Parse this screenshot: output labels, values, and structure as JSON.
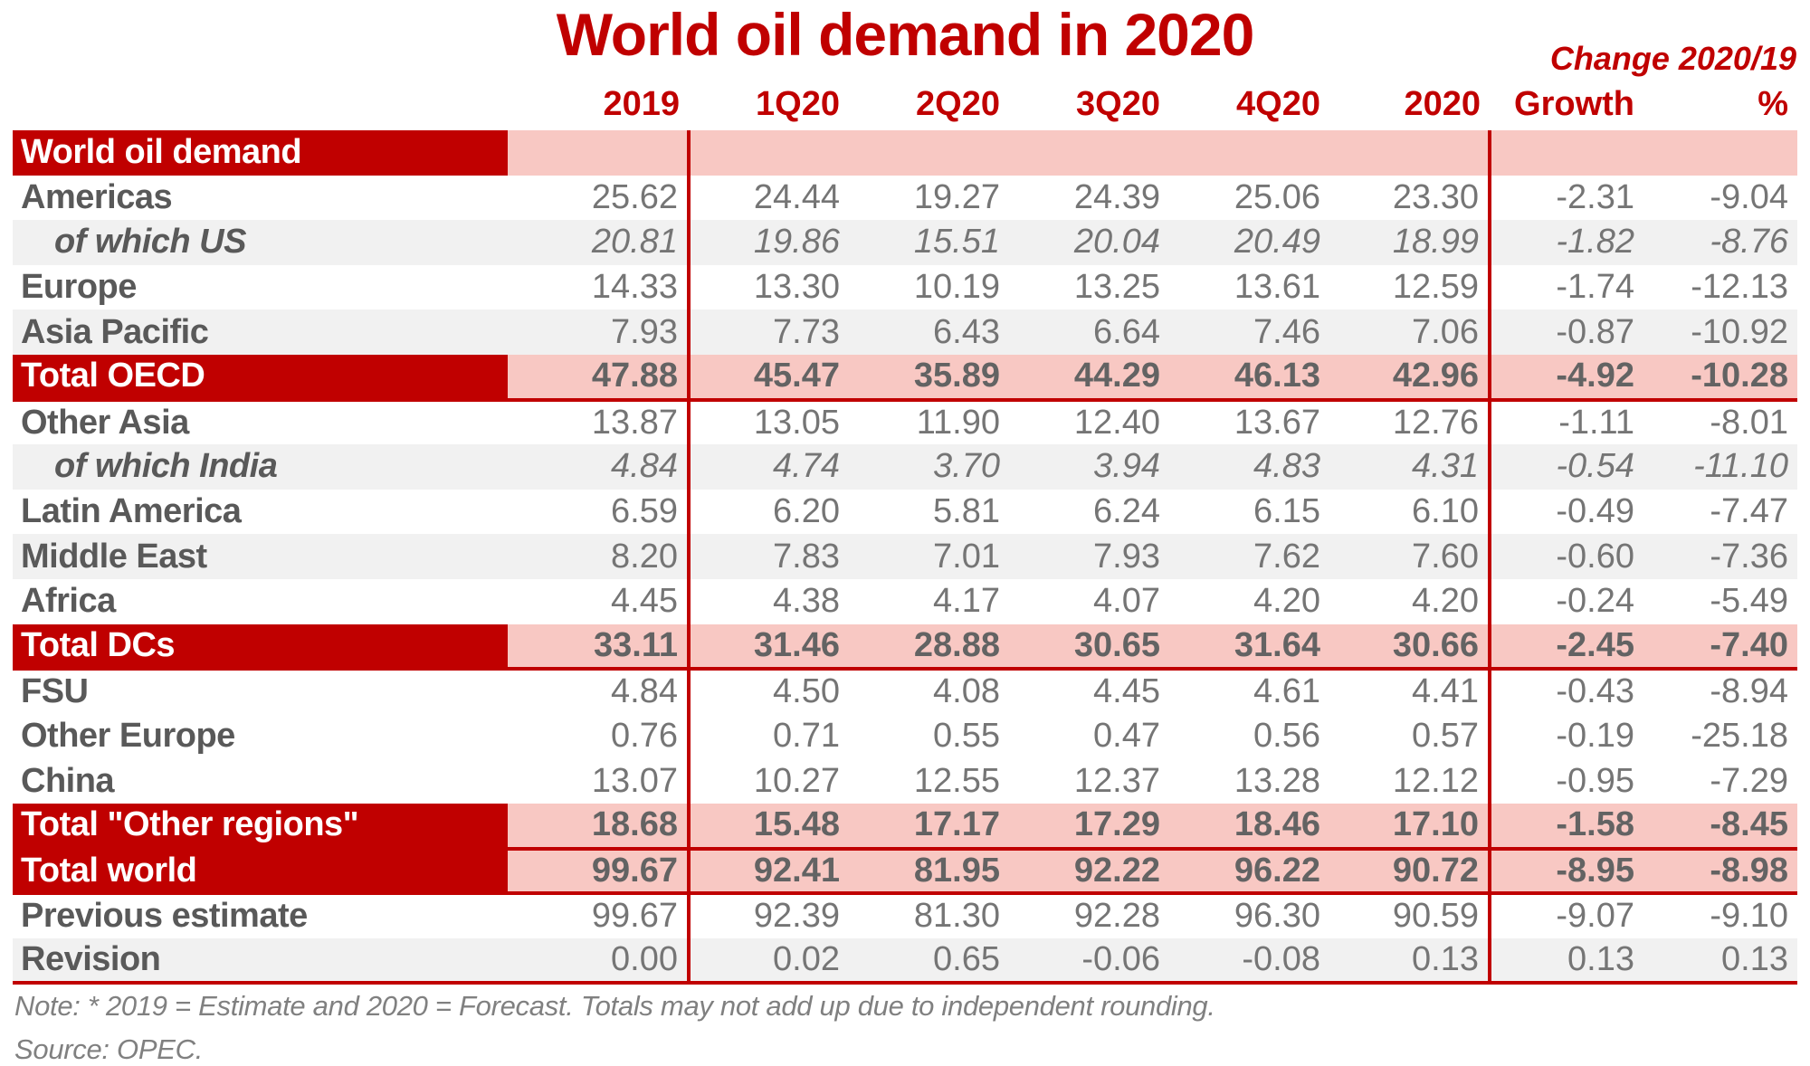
{
  "title": "World oil demand in 2020",
  "change_header": "Change 2020/19",
  "note": "Note: * 2019 = Estimate and 2020 = Forecast. Totals may not add up due to independent rounding.",
  "source": "Source: OPEC.",
  "colors": {
    "accent_red": "#C00000",
    "total_pink": "#F8C8C3",
    "stripe_grey": "#F1F1F1",
    "label_grey": "#595959",
    "value_grey": "#757575",
    "note_grey": "#808080"
  },
  "chart_data": {
    "type": "table",
    "title": "World oil demand in 2020",
    "change_header": "Change 2020/19",
    "columns": [
      "2019",
      "1Q20",
      "2Q20",
      "3Q20",
      "4Q20",
      "2020",
      "Growth",
      "%"
    ],
    "rows": [
      {
        "label": "World oil demand",
        "style": "section",
        "bg": "white",
        "rule_below": false,
        "values": [
          "",
          "",
          "",
          "",
          "",
          "",
          "",
          ""
        ]
      },
      {
        "label": "Americas",
        "style": "normal",
        "bg": "white",
        "rule_below": false,
        "values": [
          "25.62",
          "24.44",
          "19.27",
          "24.39",
          "25.06",
          "23.30",
          "-2.31",
          "-9.04"
        ]
      },
      {
        "label": "of which US",
        "style": "sub",
        "bg": "grey",
        "rule_below": false,
        "values": [
          "20.81",
          "19.86",
          "15.51",
          "20.04",
          "20.49",
          "18.99",
          "-1.82",
          "-8.76"
        ]
      },
      {
        "label": "Europe",
        "style": "normal",
        "bg": "white",
        "rule_below": false,
        "values": [
          "14.33",
          "13.30",
          "10.19",
          "13.25",
          "13.61",
          "12.59",
          "-1.74",
          "-12.13"
        ]
      },
      {
        "label": "Asia Pacific",
        "style": "normal",
        "bg": "grey",
        "rule_below": false,
        "values": [
          "7.93",
          "7.73",
          "6.43",
          "6.64",
          "7.46",
          "7.06",
          "-0.87",
          "-10.92"
        ]
      },
      {
        "label": "Total OECD",
        "style": "total",
        "bg": "white",
        "rule_below": true,
        "values": [
          "47.88",
          "45.47",
          "35.89",
          "44.29",
          "46.13",
          "42.96",
          "-4.92",
          "-10.28"
        ]
      },
      {
        "label": "Other Asia",
        "style": "normal",
        "bg": "white",
        "rule_below": false,
        "values": [
          "13.87",
          "13.05",
          "11.90",
          "12.40",
          "13.67",
          "12.76",
          "-1.11",
          "-8.01"
        ]
      },
      {
        "label": "of which India",
        "style": "sub",
        "bg": "grey",
        "rule_below": false,
        "values": [
          "4.84",
          "4.74",
          "3.70",
          "3.94",
          "4.83",
          "4.31",
          "-0.54",
          "-11.10"
        ]
      },
      {
        "label": "Latin America",
        "style": "normal",
        "bg": "white",
        "rule_below": false,
        "values": [
          "6.59",
          "6.20",
          "5.81",
          "6.24",
          "6.15",
          "6.10",
          "-0.49",
          "-7.47"
        ]
      },
      {
        "label": "Middle East",
        "style": "normal",
        "bg": "grey",
        "rule_below": false,
        "values": [
          "8.20",
          "7.83",
          "7.01",
          "7.93",
          "7.62",
          "7.60",
          "-0.60",
          "-7.36"
        ]
      },
      {
        "label": "Africa",
        "style": "normal",
        "bg": "white",
        "rule_below": false,
        "values": [
          "4.45",
          "4.38",
          "4.17",
          "4.07",
          "4.20",
          "4.20",
          "-0.24",
          "-5.49"
        ]
      },
      {
        "label": "Total DCs",
        "style": "total",
        "bg": "white",
        "rule_below": true,
        "values": [
          "33.11",
          "31.46",
          "28.88",
          "30.65",
          "31.64",
          "30.66",
          "-2.45",
          "-7.40"
        ]
      },
      {
        "label": "FSU",
        "style": "normal",
        "bg": "white",
        "rule_below": false,
        "values": [
          "4.84",
          "4.50",
          "4.08",
          "4.45",
          "4.61",
          "4.41",
          "-0.43",
          "-8.94"
        ]
      },
      {
        "label": "Other Europe",
        "style": "normal",
        "bg": "white",
        "rule_below": false,
        "values": [
          "0.76",
          "0.71",
          "0.55",
          "0.47",
          "0.56",
          "0.57",
          "-0.19",
          "-25.18"
        ]
      },
      {
        "label": "China",
        "style": "normal",
        "bg": "white",
        "rule_below": false,
        "values": [
          "13.07",
          "10.27",
          "12.55",
          "12.37",
          "13.28",
          "12.12",
          "-0.95",
          "-7.29"
        ]
      },
      {
        "label": "Total \"Other regions\"",
        "style": "total",
        "bg": "white",
        "rule_below": true,
        "values": [
          "18.68",
          "15.48",
          "17.17",
          "17.29",
          "18.46",
          "17.10",
          "-1.58",
          "-8.45"
        ]
      },
      {
        "label": "Total world",
        "style": "total",
        "bg": "white",
        "rule_below": true,
        "values": [
          "99.67",
          "92.41",
          "81.95",
          "92.22",
          "96.22",
          "90.72",
          "-8.95",
          "-8.98"
        ]
      },
      {
        "label": "Previous estimate",
        "style": "normal",
        "bg": "white",
        "rule_below": false,
        "values": [
          "99.67",
          "92.39",
          "81.30",
          "92.28",
          "96.30",
          "90.59",
          "-9.07",
          "-9.10"
        ]
      },
      {
        "label": "Revision",
        "style": "normal",
        "bg": "grey",
        "rule_below": true,
        "values": [
          "0.00",
          "0.02",
          "0.65",
          "-0.06",
          "-0.08",
          "0.13",
          "0.13",
          "0.13"
        ]
      }
    ]
  }
}
